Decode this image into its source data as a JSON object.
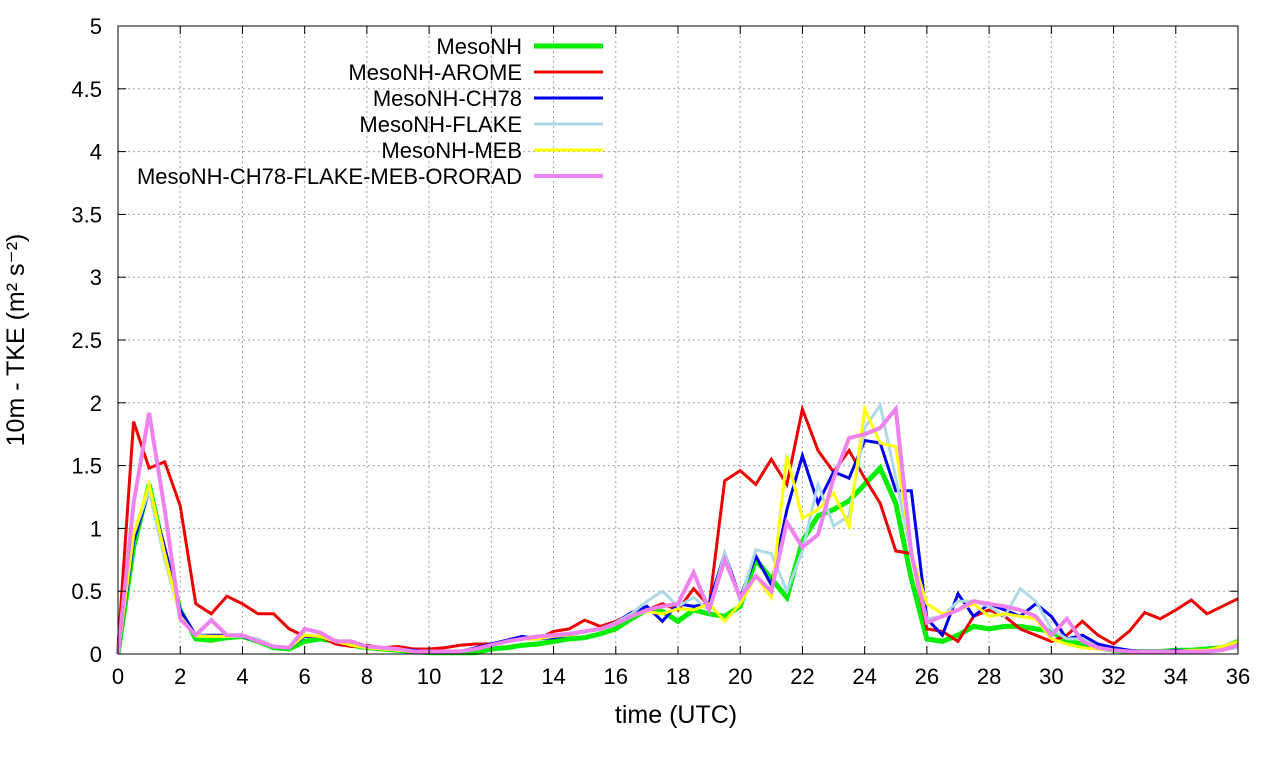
{
  "chart_data": {
    "type": "line",
    "xlabel": "time (UTC)",
    "ylabel": "10m - TKE (m² s⁻²)",
    "xlim": [
      0,
      36
    ],
    "ylim": [
      0,
      5
    ],
    "xticks": [
      "0",
      "2",
      "4",
      "6",
      "8",
      "10",
      "12",
      "14",
      "16",
      "18",
      "20",
      "22",
      "24",
      "26",
      "28",
      "30",
      "32",
      "34",
      "36"
    ],
    "yticks": [
      "0",
      "0.5",
      "1",
      "1.5",
      "2",
      "2.5",
      "3",
      "3.5",
      "4",
      "4.5",
      "5"
    ],
    "grid": true,
    "legend_position": "top-left",
    "series": [
      {
        "name": "MesoNH",
        "color": "#00ee00",
        "width": 5,
        "x": [
          0,
          0.5,
          1,
          1.5,
          2,
          2.5,
          3,
          3.5,
          4,
          4.5,
          5,
          5.5,
          6,
          6.5,
          7,
          7.5,
          8,
          8.5,
          9,
          9.5,
          10,
          10.5,
          11,
          11.5,
          12,
          12.5,
          13,
          13.5,
          14,
          14.5,
          15,
          15.5,
          16,
          16.5,
          17,
          17.5,
          18,
          18.5,
          19,
          19.5,
          20,
          20.5,
          21,
          21.5,
          22,
          22.5,
          23,
          23.5,
          24,
          24.5,
          25,
          25.5,
          26,
          26.5,
          27,
          27.5,
          28,
          28.5,
          29,
          29.5,
          30,
          30.5,
          31,
          31.5,
          32,
          32.5,
          33,
          33.5,
          34,
          34.5,
          35,
          35.5,
          36
        ],
        "y": [
          0,
          0.85,
          1.35,
          0.8,
          0.35,
          0.12,
          0.11,
          0.13,
          0.14,
          0.1,
          0.05,
          0.04,
          0.1,
          0.12,
          0.1,
          0.07,
          0.05,
          0.04,
          0.03,
          0.02,
          0.01,
          0.01,
          0.01,
          0.01,
          0.04,
          0.05,
          0.07,
          0.08,
          0.1,
          0.12,
          0.13,
          0.16,
          0.2,
          0.28,
          0.35,
          0.34,
          0.26,
          0.35,
          0.32,
          0.3,
          0.38,
          0.75,
          0.6,
          0.45,
          0.9,
          1.1,
          1.15,
          1.22,
          1.35,
          1.48,
          1.2,
          0.6,
          0.12,
          0.1,
          0.15,
          0.22,
          0.2,
          0.22,
          0.22,
          0.2,
          0.18,
          0.1,
          0.08,
          0.05,
          0.03,
          0.02,
          0.02,
          0.02,
          0.03,
          0.03,
          0.04,
          0.05,
          0.1
        ]
      },
      {
        "name": "MesoNH-AROME",
        "color": "#ee0000",
        "width": 3,
        "x": [
          0,
          0.5,
          1,
          1.5,
          2,
          2.5,
          3,
          3.5,
          4,
          4.5,
          5,
          5.5,
          6,
          6.5,
          7,
          7.5,
          8,
          8.5,
          9,
          9.5,
          10,
          10.5,
          11,
          11.5,
          12,
          12.5,
          13,
          13.5,
          14,
          14.5,
          15,
          15.5,
          16,
          16.5,
          17,
          17.5,
          18,
          18.5,
          19,
          19.5,
          20,
          20.5,
          21,
          21.5,
          22,
          22.5,
          23,
          23.5,
          24,
          24.5,
          25,
          25.5,
          26,
          26.5,
          27,
          27.5,
          28,
          28.5,
          29,
          29.5,
          30,
          30.5,
          31,
          31.5,
          32,
          32.5,
          33,
          33.5,
          34,
          34.5,
          35,
          35.5,
          36
        ],
        "y": [
          0.05,
          1.85,
          1.48,
          1.53,
          1.18,
          0.4,
          0.32,
          0.46,
          0.4,
          0.32,
          0.32,
          0.2,
          0.14,
          0.14,
          0.08,
          0.06,
          0.07,
          0.05,
          0.06,
          0.04,
          0.04,
          0.05,
          0.07,
          0.08,
          0.08,
          0.1,
          0.12,
          0.12,
          0.18,
          0.2,
          0.27,
          0.22,
          0.26,
          0.32,
          0.35,
          0.4,
          0.35,
          0.52,
          0.38,
          1.38,
          1.46,
          1.35,
          1.55,
          1.35,
          1.95,
          1.62,
          1.45,
          1.62,
          1.4,
          1.2,
          0.82,
          0.8,
          0.2,
          0.18,
          0.1,
          0.3,
          0.35,
          0.3,
          0.2,
          0.15,
          0.1,
          0.15,
          0.26,
          0.15,
          0.08,
          0.18,
          0.33,
          0.28,
          0.35,
          0.43,
          0.32,
          0.38,
          0.44
        ]
      },
      {
        "name": "MesoNH-CH78",
        "color": "#0000ee",
        "width": 3,
        "x": [
          0,
          0.5,
          1,
          1.5,
          2,
          2.5,
          3,
          3.5,
          4,
          4.5,
          5,
          5.5,
          6,
          6.5,
          7,
          7.5,
          8,
          8.5,
          9,
          9.5,
          10,
          10.5,
          11,
          11.5,
          12,
          12.5,
          13,
          13.5,
          14,
          14.5,
          15,
          15.5,
          16,
          16.5,
          17,
          17.5,
          18,
          18.5,
          19,
          19.5,
          20,
          20.5,
          21,
          21.5,
          22,
          22.5,
          23,
          23.5,
          24,
          24.5,
          25,
          25.5,
          26,
          26.5,
          27,
          27.5,
          28,
          28.5,
          29,
          29.5,
          30,
          30.5,
          31,
          31.5,
          32,
          32.5,
          33,
          33.5,
          34,
          34.5,
          35,
          35.5,
          36
        ],
        "y": [
          0,
          0.9,
          1.3,
          0.85,
          0.35,
          0.15,
          0.15,
          0.15,
          0.14,
          0.1,
          0.06,
          0.05,
          0.14,
          0.14,
          0.1,
          0.08,
          0.06,
          0.04,
          0.04,
          0.03,
          0.02,
          0.02,
          0.02,
          0.05,
          0.08,
          0.11,
          0.14,
          0.12,
          0.13,
          0.15,
          0.18,
          0.2,
          0.25,
          0.33,
          0.38,
          0.26,
          0.4,
          0.38,
          0.4,
          0.8,
          0.45,
          0.78,
          0.55,
          1.15,
          1.58,
          1.2,
          1.45,
          1.4,
          1.7,
          1.68,
          1.3,
          1.3,
          0.28,
          0.15,
          0.48,
          0.3,
          0.4,
          0.35,
          0.3,
          0.4,
          0.3,
          0.12,
          0.15,
          0.08,
          0.05,
          0.03,
          0.02,
          0.02,
          0.03,
          0.02,
          0.03,
          0.06,
          0.05
        ]
      },
      {
        "name": "MesoNH-FLAKE",
        "color": "#add8e6",
        "width": 3,
        "x": [
          0,
          0.5,
          1,
          1.5,
          2,
          2.5,
          3,
          3.5,
          4,
          4.5,
          5,
          5.5,
          6,
          6.5,
          7,
          7.5,
          8,
          8.5,
          9,
          9.5,
          10,
          10.5,
          11,
          11.5,
          12,
          12.5,
          13,
          13.5,
          14,
          14.5,
          15,
          15.5,
          16,
          16.5,
          17,
          17.5,
          18,
          18.5,
          19,
          19.5,
          20,
          20.5,
          21,
          21.5,
          22,
          22.5,
          23,
          23.5,
          24,
          24.5,
          25,
          25.5,
          26,
          26.5,
          27,
          27.5,
          28,
          28.5,
          29,
          29.5,
          30,
          30.5,
          31,
          31.5,
          32,
          32.5,
          33,
          33.5,
          34,
          34.5,
          35,
          35.5,
          36
        ],
        "y": [
          0,
          0.95,
          1.3,
          0.75,
          0.3,
          0.15,
          0.14,
          0.14,
          0.14,
          0.12,
          0.06,
          0.05,
          0.15,
          0.14,
          0.1,
          0.07,
          0.05,
          0.04,
          0.03,
          0.02,
          0.02,
          0.02,
          0.02,
          0.04,
          0.07,
          0.1,
          0.12,
          0.13,
          0.15,
          0.16,
          0.18,
          0.2,
          0.25,
          0.32,
          0.42,
          0.5,
          0.38,
          0.45,
          0.35,
          0.8,
          0.42,
          0.83,
          0.8,
          0.5,
          0.82,
          1.35,
          1.02,
          1.1,
          1.8,
          1.98,
          1.4,
          0.8,
          0.28,
          0.3,
          0.42,
          0.42,
          0.38,
          0.3,
          0.52,
          0.42,
          0.2,
          0.12,
          0.12,
          0.05,
          0.03,
          0.02,
          0.02,
          0.02,
          0.02,
          0.02,
          0.02,
          0.03,
          0.05
        ]
      },
      {
        "name": "MesoNH-MEB",
        "color": "#ffff00",
        "width": 3,
        "x": [
          0,
          0.5,
          1,
          1.5,
          2,
          2.5,
          3,
          3.5,
          4,
          4.5,
          5,
          5.5,
          6,
          6.5,
          7,
          7.5,
          8,
          8.5,
          9,
          9.5,
          10,
          10.5,
          11,
          11.5,
          12,
          12.5,
          13,
          13.5,
          14,
          14.5,
          15,
          15.5,
          16,
          16.5,
          17,
          17.5,
          18,
          18.5,
          19,
          19.5,
          20,
          20.5,
          21,
          21.5,
          22,
          22.5,
          23,
          23.5,
          24,
          24.5,
          25,
          25.5,
          26,
          26.5,
          27,
          27.5,
          28,
          28.5,
          29,
          29.5,
          30,
          30.5,
          31,
          31.5,
          32,
          32.5,
          33,
          33.5,
          34,
          34.5,
          35,
          35.5,
          36
        ],
        "y": [
          0,
          0.95,
          1.35,
          0.8,
          0.3,
          0.14,
          0.14,
          0.14,
          0.15,
          0.1,
          0.06,
          0.05,
          0.15,
          0.14,
          0.1,
          0.07,
          0.05,
          0.04,
          0.03,
          0.02,
          0.02,
          0.02,
          0.02,
          0.04,
          0.07,
          0.1,
          0.12,
          0.12,
          0.14,
          0.15,
          0.18,
          0.2,
          0.24,
          0.3,
          0.34,
          0.32,
          0.36,
          0.35,
          0.4,
          0.26,
          0.4,
          0.62,
          0.45,
          1.58,
          1.08,
          1.15,
          1.28,
          1.02,
          1.95,
          1.68,
          1.65,
          0.8,
          0.4,
          0.32,
          0.35,
          0.4,
          0.3,
          0.32,
          0.3,
          0.28,
          0.12,
          0.08,
          0.05,
          0.04,
          0.03,
          0.02,
          0.02,
          0.02,
          0.02,
          0.03,
          0.03,
          0.06,
          0.1
        ]
      },
      {
        "name": "MesoNH-CH78-FLAKE-MEB-ORORAD",
        "color": "#ee82ee",
        "width": 4,
        "x": [
          0,
          0.5,
          1,
          1.5,
          2,
          2.5,
          3,
          3.5,
          4,
          4.5,
          5,
          5.5,
          6,
          6.5,
          7,
          7.5,
          8,
          8.5,
          9,
          9.5,
          10,
          10.5,
          11,
          11.5,
          12,
          12.5,
          13,
          13.5,
          14,
          14.5,
          15,
          15.5,
          16,
          16.5,
          17,
          17.5,
          18,
          18.5,
          19,
          19.5,
          20,
          20.5,
          21,
          21.5,
          22,
          22.5,
          23,
          23.5,
          24,
          24.5,
          25,
          25.5,
          26,
          26.5,
          27,
          27.5,
          28,
          28.5,
          29,
          29.5,
          30,
          30.5,
          31,
          31.5,
          32,
          32.5,
          33,
          33.5,
          34,
          34.5,
          35,
          35.5,
          36
        ],
        "y": [
          0,
          1.2,
          1.92,
          1.15,
          0.28,
          0.15,
          0.27,
          0.15,
          0.15,
          0.1,
          0.06,
          0.05,
          0.2,
          0.17,
          0.1,
          0.1,
          0.06,
          0.05,
          0.04,
          0.02,
          0.02,
          0.02,
          0.02,
          0.04,
          0.07,
          0.1,
          0.12,
          0.14,
          0.15,
          0.16,
          0.18,
          0.2,
          0.24,
          0.3,
          0.35,
          0.38,
          0.4,
          0.65,
          0.35,
          0.75,
          0.45,
          0.62,
          0.5,
          1.05,
          0.85,
          0.95,
          1.4,
          1.72,
          1.75,
          1.8,
          1.95,
          0.8,
          0.25,
          0.3,
          0.35,
          0.42,
          0.4,
          0.38,
          0.35,
          0.3,
          0.15,
          0.28,
          0.1,
          0.05,
          0.03,
          0.02,
          0.02,
          0.02,
          0.02,
          0.02,
          0.02,
          0.03,
          0.07
        ]
      }
    ]
  }
}
